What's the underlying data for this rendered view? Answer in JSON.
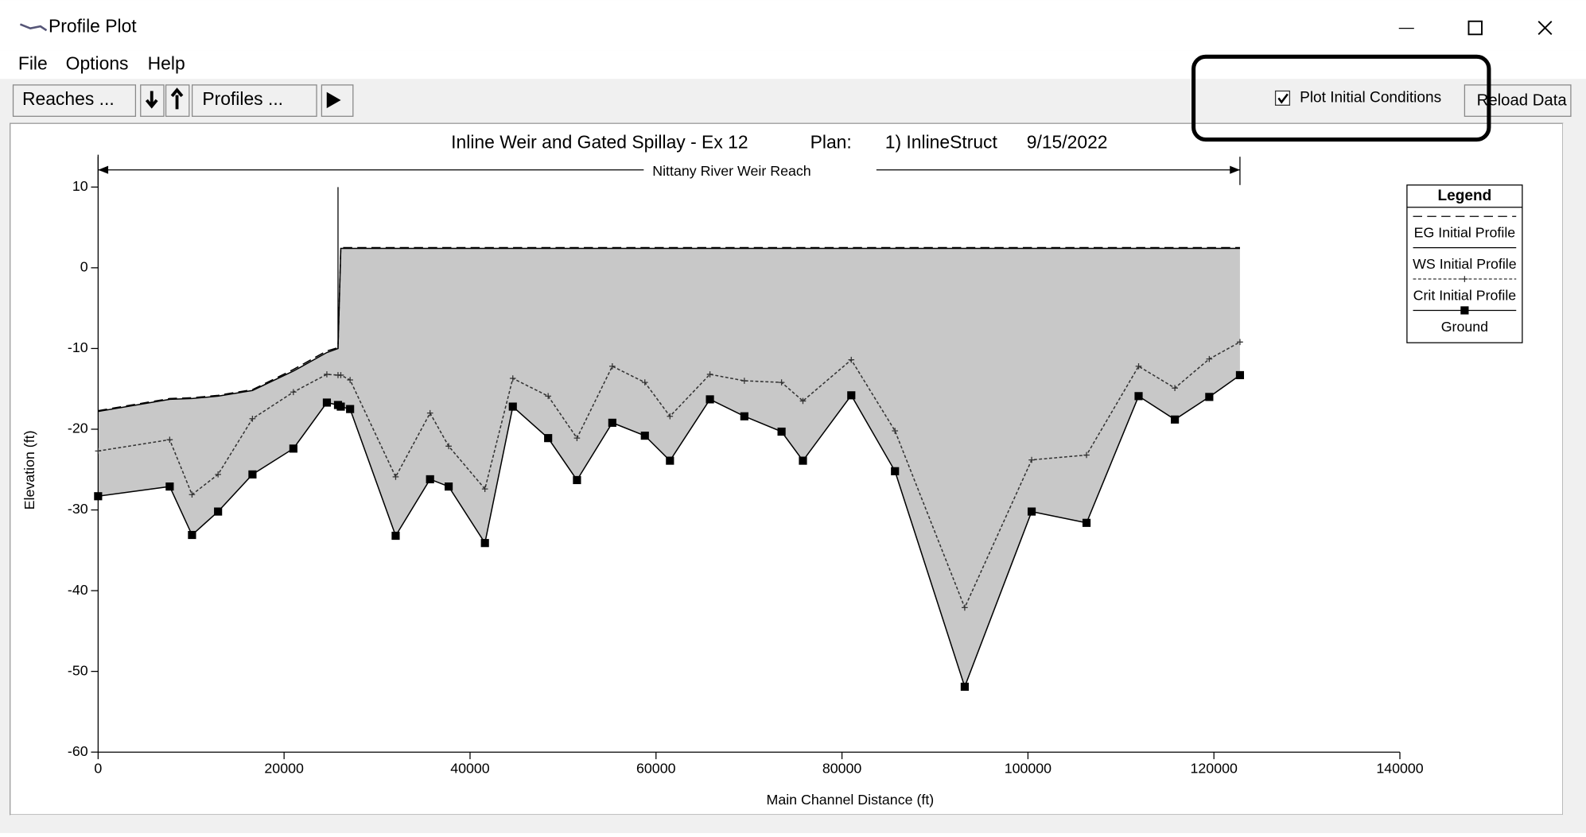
{
  "window": {
    "title": "Profile Plot",
    "menu": [
      "File",
      "Options",
      "Help"
    ],
    "toolbar": {
      "reaches": "Reaches ...",
      "profiles": "Profiles ...",
      "checkbox_label": "Plot Initial Conditions",
      "reload": "Reload Data"
    }
  },
  "chart_data": {
    "type": "line",
    "title": "Inline Weir and Gated Spillay - Ex 12",
    "plan_label": "Plan:",
    "plan": "1) InlineStruct",
    "date": "9/15/2022",
    "reach_label": "Nittany River Weir Reach",
    "xlabel": "Main Channel Distance (ft)",
    "ylabel": "Elevation (ft)",
    "legend_title": "Legend",
    "x": [
      0,
      7700,
      10100,
      12900,
      16600,
      21000,
      24600,
      25800,
      26100,
      27100,
      32000,
      35700,
      37700,
      41600,
      44600,
      48400,
      51500,
      55300,
      58800,
      61500,
      65800,
      69500,
      73500,
      75800,
      81000,
      85700,
      93200,
      100400,
      106300,
      111900,
      115800,
      119500,
      122800
    ],
    "series": [
      {
        "name": "EG Initial Profile",
        "color": "#000000",
        "dash": "9 5",
        "values": [
          -17.7,
          -16.2,
          -16.1,
          -15.8,
          -15.1,
          -12.6,
          -10.3,
          -9.9,
          2.5,
          2.5,
          2.5,
          2.5,
          2.5,
          2.5,
          2.5,
          2.5,
          2.5,
          2.5,
          2.5,
          2.5,
          2.5,
          2.5,
          2.5,
          2.5,
          2.5,
          2.5,
          2.5,
          2.5,
          2.5,
          2.5,
          2.5,
          2.5,
          2.5
        ]
      },
      {
        "name": "WS Initial Profile",
        "color": "#000000",
        "values": [
          -17.8,
          -16.3,
          -16.2,
          -15.9,
          -15.2,
          -12.8,
          -10.5,
          -10.0,
          2.4,
          2.4,
          2.4,
          2.4,
          2.4,
          2.4,
          2.4,
          2.4,
          2.4,
          2.4,
          2.4,
          2.4,
          2.4,
          2.4,
          2.4,
          2.4,
          2.4,
          2.4,
          2.4,
          2.4,
          2.4,
          2.4,
          2.4,
          2.4,
          2.4
        ]
      },
      {
        "name": "Crit Initial Profile",
        "color": "#333333",
        "dash": "3 2",
        "marker": "plus",
        "values": [
          -22.7,
          -21.3,
          -28.1,
          -25.6,
          -18.7,
          -15.4,
          -13.2,
          -13.3,
          -13.3,
          -13.9,
          -25.9,
          -18.0,
          -22.1,
          -27.4,
          -13.7,
          -15.9,
          -21.1,
          -12.2,
          -14.2,
          -18.4,
          -13.2,
          -14.0,
          -14.2,
          -16.5,
          -11.4,
          -20.2,
          -42.1,
          -23.8,
          -23.2,
          -12.2,
          -14.9,
          -11.3,
          -9.2
        ]
      },
      {
        "name": "Ground",
        "color": "#000000",
        "marker": "square",
        "values": [
          -28.3,
          -27.1,
          -33.1,
          -30.2,
          -25.6,
          -22.4,
          -16.7,
          -17.0,
          -17.2,
          -17.5,
          -33.2,
          -26.2,
          -27.1,
          -34.1,
          -17.2,
          -21.1,
          -26.3,
          -19.2,
          -20.8,
          -23.9,
          -16.3,
          -18.4,
          -20.3,
          -23.9,
          -15.8,
          -25.2,
          -51.9,
          -30.2,
          -31.6,
          -15.9,
          -18.8,
          -16.0,
          -13.3
        ]
      }
    ],
    "fill_color": "#c8c8c8",
    "xlim": [
      0,
      140000
    ],
    "xticks": [
      0,
      20000,
      40000,
      60000,
      80000,
      100000,
      120000,
      140000
    ],
    "ylim": [
      -60,
      10
    ],
    "yticks": [
      -60,
      -50,
      -40,
      -30,
      -20,
      -10,
      0,
      10
    ]
  }
}
